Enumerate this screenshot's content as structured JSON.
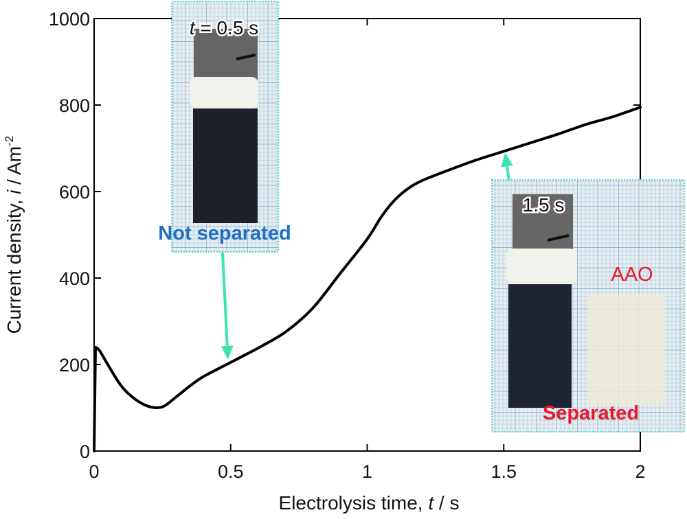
{
  "chart_data": {
    "type": "line",
    "xlabel_main": "Electrolysis time, ",
    "xlabel_var": "t",
    "xlabel_unit": " / s",
    "ylabel_main": "Current density, ",
    "ylabel_var": "i",
    "ylabel_unit": " / Am",
    "ylabel_unit_sup": "-2",
    "xlim": [
      0,
      2
    ],
    "ylim": [
      0,
      1000
    ],
    "x_ticks": [
      "0",
      "0.5",
      "1",
      "1.5",
      "2"
    ],
    "y_ticks": [
      "0",
      "200",
      "400",
      "600",
      "800",
      "1000"
    ],
    "series": [
      {
        "x": [
          0,
          0.005,
          0.02,
          0.05,
          0.1,
          0.15,
          0.2,
          0.25,
          0.3,
          0.35,
          0.4,
          0.5,
          0.6,
          0.7,
          0.8,
          0.9,
          1.0,
          1.05,
          1.1,
          1.15,
          1.2,
          1.3,
          1.4,
          1.5,
          1.6,
          1.7,
          1.8,
          1.9,
          2.0
        ],
        "y": [
          0,
          240,
          232,
          200,
          150,
          120,
          103,
          102,
          125,
          150,
          172,
          205,
          238,
          275,
          330,
          410,
          490,
          540,
          580,
          607,
          625,
          650,
          673,
          693,
          713,
          733,
          755,
          773,
          795
        ],
        "color": "#000000"
      }
    ],
    "annotations": [
      {
        "time_label_var": "t",
        "time_label_rest": " = 0.5 s",
        "caption": "Not separated",
        "arrow_to": [
          0.5,
          205
        ]
      },
      {
        "time_label": "1.5 s",
        "caption": "Separated",
        "extra_label": "AAO",
        "arrow_to": [
          1.5,
          693
        ]
      }
    ]
  },
  "colors": {
    "arrow": "#3de3b2",
    "inset_border": "#4fd9c0",
    "grid_paper": "#e6eef1",
    "grid_minor": "#b4cddd",
    "grid_major": "#7fa4c4",
    "caption_blue": "#1f6fc9",
    "caption_red": "#e8192c"
  }
}
